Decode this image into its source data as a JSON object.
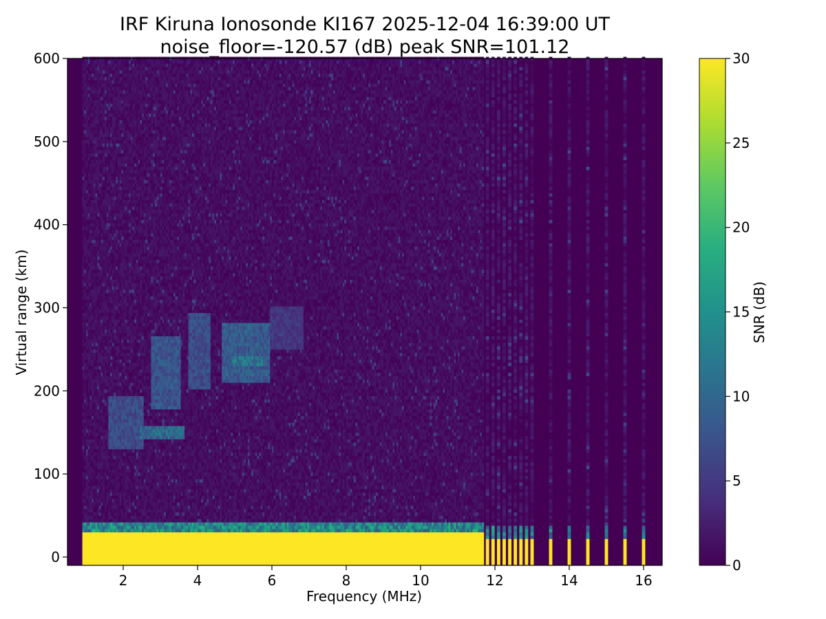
{
  "chart_data": {
    "type": "heatmap",
    "title": "IRF Kiruna Ionosonde KI167 2025-12-04 16:39:00  UT",
    "subtitle": "noise_floor=-120.57 (dB) peak SNR=101.12",
    "xlabel": "Frequency (MHz)",
    "ylabel": "Virtual range (km)",
    "colorbar_label": "SNR (dB)",
    "xlim": [
      0.5,
      16.5
    ],
    "ylim": [
      -10,
      600
    ],
    "clim": [
      0,
      30
    ],
    "colormap": "viridis",
    "x_ticks": [
      2,
      4,
      6,
      8,
      10,
      12,
      14,
      16
    ],
    "y_ticks": [
      0,
      100,
      200,
      300,
      400,
      500,
      600
    ],
    "colorbar_ticks": [
      0,
      5,
      10,
      15,
      20,
      25,
      30
    ],
    "data_start_freq_mhz": 0.9,
    "dense_sweep_end_mhz": 11.7,
    "sparse_channels_mhz": [
      11.8,
      11.95,
      12.1,
      12.25,
      12.4,
      12.55,
      12.7,
      12.85,
      13.0,
      13.5,
      14.0,
      14.5,
      15.0,
      15.5,
      16.0
    ],
    "background_snr_db": 1.5,
    "ground_echo": {
      "range_km": [
        -10,
        28
      ],
      "snr_db": 30,
      "edge_range_km": [
        28,
        42
      ],
      "edge_snr_db": 16
    },
    "echo_regions": [
      {
        "freq_mhz": [
          1.6,
          2.5
        ],
        "range_km": [
          130,
          190
        ],
        "snr_db": 9
      },
      {
        "freq_mhz": [
          2.4,
          3.6
        ],
        "range_km": [
          140,
          155
        ],
        "snr_db": 13
      },
      {
        "freq_mhz": [
          2.7,
          3.5
        ],
        "range_km": [
          175,
          265
        ],
        "snr_db": 10
      },
      {
        "freq_mhz": [
          3.7,
          4.3
        ],
        "range_km": [
          200,
          290
        ],
        "snr_db": 9
      },
      {
        "freq_mhz": [
          4.6,
          5.9
        ],
        "range_km": [
          210,
          280
        ],
        "snr_db": 11
      },
      {
        "freq_mhz": [
          4.9,
          5.7
        ],
        "range_km": [
          228,
          240
        ],
        "snr_db": 15
      },
      {
        "freq_mhz": [
          5.9,
          6.8
        ],
        "range_km": [
          250,
          300
        ],
        "snr_db": 6
      }
    ]
  }
}
